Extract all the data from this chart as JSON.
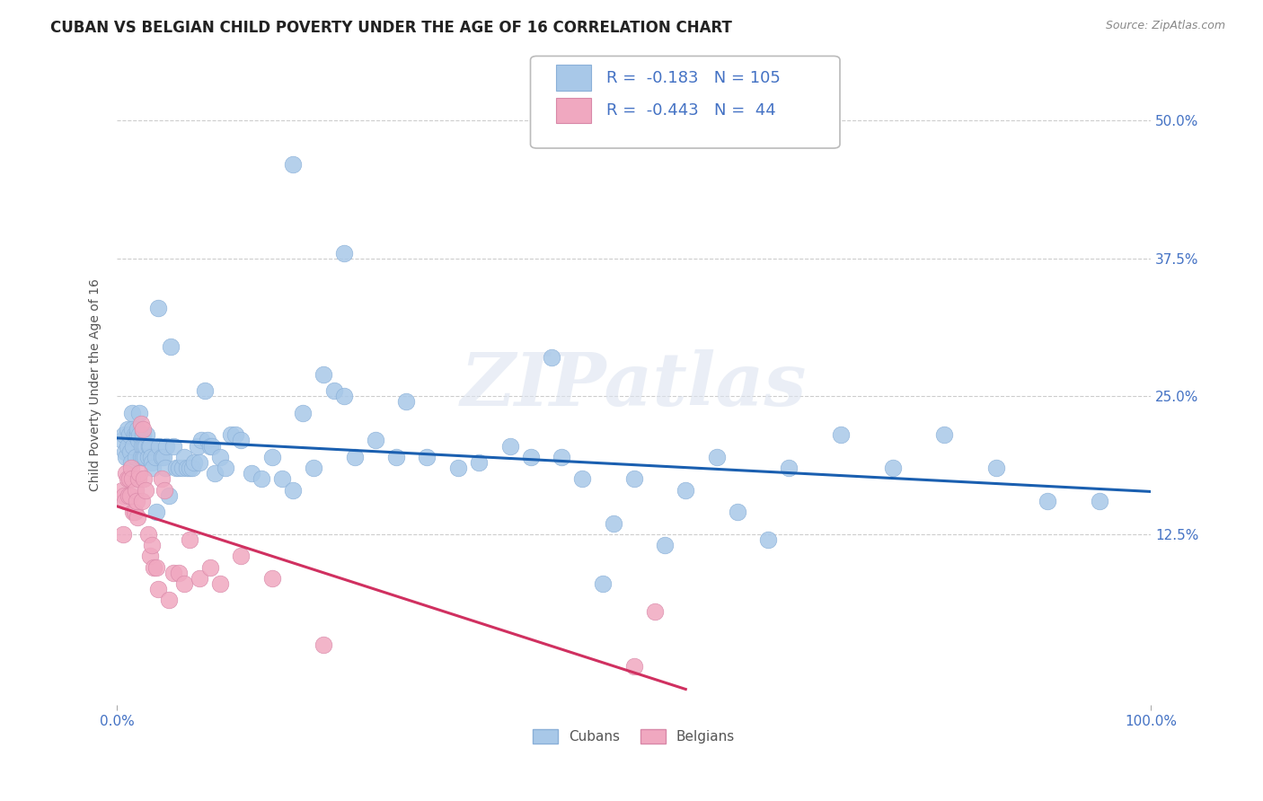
{
  "title": "CUBAN VS BELGIAN CHILD POVERTY UNDER THE AGE OF 16 CORRELATION CHART",
  "source": "Source: ZipAtlas.com",
  "ylabel": "Child Poverty Under the Age of 16",
  "ytick_labels": [
    "12.5%",
    "25.0%",
    "37.5%",
    "50.0%"
  ],
  "ytick_values": [
    0.125,
    0.25,
    0.375,
    0.5
  ],
  "xlim": [
    0.0,
    1.0
  ],
  "ylim": [
    -0.03,
    0.55
  ],
  "cuban_color": "#a8c8e8",
  "belgian_color": "#f0a8c0",
  "cuban_line_color": "#1a5fb0",
  "belgian_line_color": "#d03060",
  "legend_cuban_label": "Cubans",
  "legend_belgian_label": "Belgians",
  "r_cuban": "-0.183",
  "n_cuban": "105",
  "r_belgian": "-0.443",
  "n_belgian": "44",
  "watermark": "ZIPatlas",
  "background_color": "#ffffff",
  "grid_color": "#c8c8c8",
  "title_fontsize": 12,
  "axis_label_fontsize": 10,
  "tick_fontsize": 11,
  "cuban_scatter_x": [
    0.005,
    0.007,
    0.008,
    0.009,
    0.01,
    0.01,
    0.012,
    0.013,
    0.014,
    0.015,
    0.015,
    0.016,
    0.017,
    0.018,
    0.019,
    0.02,
    0.02,
    0.021,
    0.022,
    0.022,
    0.023,
    0.024,
    0.025,
    0.025,
    0.026,
    0.027,
    0.028,
    0.029,
    0.03,
    0.031,
    0.032,
    0.033,
    0.034,
    0.035,
    0.037,
    0.038,
    0.04,
    0.041,
    0.043,
    0.045,
    0.047,
    0.048,
    0.05,
    0.052,
    0.055,
    0.057,
    0.06,
    0.063,
    0.065,
    0.068,
    0.07,
    0.073,
    0.075,
    0.078,
    0.08,
    0.082,
    0.085,
    0.088,
    0.09,
    0.092,
    0.095,
    0.1,
    0.105,
    0.11,
    0.115,
    0.12,
    0.13,
    0.14,
    0.15,
    0.16,
    0.17,
    0.18,
    0.19,
    0.2,
    0.21,
    0.22,
    0.23,
    0.25,
    0.27,
    0.3,
    0.33,
    0.35,
    0.38,
    0.4,
    0.43,
    0.45,
    0.48,
    0.5,
    0.53,
    0.55,
    0.58,
    0.6,
    0.63,
    0.65,
    0.7,
    0.75,
    0.8,
    0.85,
    0.9,
    0.95,
    0.17,
    0.22,
    0.28,
    0.42,
    0.47
  ],
  "cuban_scatter_y": [
    0.21,
    0.215,
    0.2,
    0.195,
    0.22,
    0.205,
    0.215,
    0.2,
    0.19,
    0.235,
    0.22,
    0.205,
    0.215,
    0.195,
    0.215,
    0.215,
    0.22,
    0.21,
    0.215,
    0.235,
    0.195,
    0.205,
    0.195,
    0.215,
    0.205,
    0.195,
    0.205,
    0.215,
    0.195,
    0.205,
    0.205,
    0.195,
    0.19,
    0.185,
    0.195,
    0.145,
    0.33,
    0.205,
    0.195,
    0.195,
    0.185,
    0.205,
    0.16,
    0.295,
    0.205,
    0.185,
    0.185,
    0.185,
    0.195,
    0.185,
    0.185,
    0.185,
    0.19,
    0.205,
    0.19,
    0.21,
    0.255,
    0.21,
    0.205,
    0.205,
    0.18,
    0.195,
    0.185,
    0.215,
    0.215,
    0.21,
    0.18,
    0.175,
    0.195,
    0.175,
    0.165,
    0.235,
    0.185,
    0.27,
    0.255,
    0.25,
    0.195,
    0.21,
    0.195,
    0.195,
    0.185,
    0.19,
    0.205,
    0.195,
    0.195,
    0.175,
    0.135,
    0.175,
    0.115,
    0.165,
    0.195,
    0.145,
    0.12,
    0.185,
    0.215,
    0.185,
    0.215,
    0.185,
    0.155,
    0.155,
    0.46,
    0.38,
    0.245,
    0.285,
    0.08
  ],
  "belgian_scatter_x": [
    0.005,
    0.006,
    0.007,
    0.008,
    0.009,
    0.01,
    0.011,
    0.012,
    0.013,
    0.014,
    0.015,
    0.016,
    0.017,
    0.018,
    0.019,
    0.02,
    0.021,
    0.022,
    0.023,
    0.024,
    0.025,
    0.026,
    0.028,
    0.03,
    0.032,
    0.034,
    0.036,
    0.038,
    0.04,
    0.043,
    0.046,
    0.05,
    0.055,
    0.06,
    0.065,
    0.07,
    0.08,
    0.09,
    0.1,
    0.12,
    0.15,
    0.2,
    0.5,
    0.52
  ],
  "belgian_scatter_y": [
    0.165,
    0.125,
    0.16,
    0.155,
    0.18,
    0.175,
    0.16,
    0.175,
    0.16,
    0.185,
    0.175,
    0.145,
    0.145,
    0.165,
    0.155,
    0.14,
    0.175,
    0.18,
    0.225,
    0.155,
    0.22,
    0.175,
    0.165,
    0.125,
    0.105,
    0.115,
    0.095,
    0.095,
    0.075,
    0.175,
    0.165,
    0.065,
    0.09,
    0.09,
    0.08,
    0.12,
    0.085,
    0.095,
    0.08,
    0.105,
    0.085,
    0.025,
    0.005,
    0.055
  ]
}
